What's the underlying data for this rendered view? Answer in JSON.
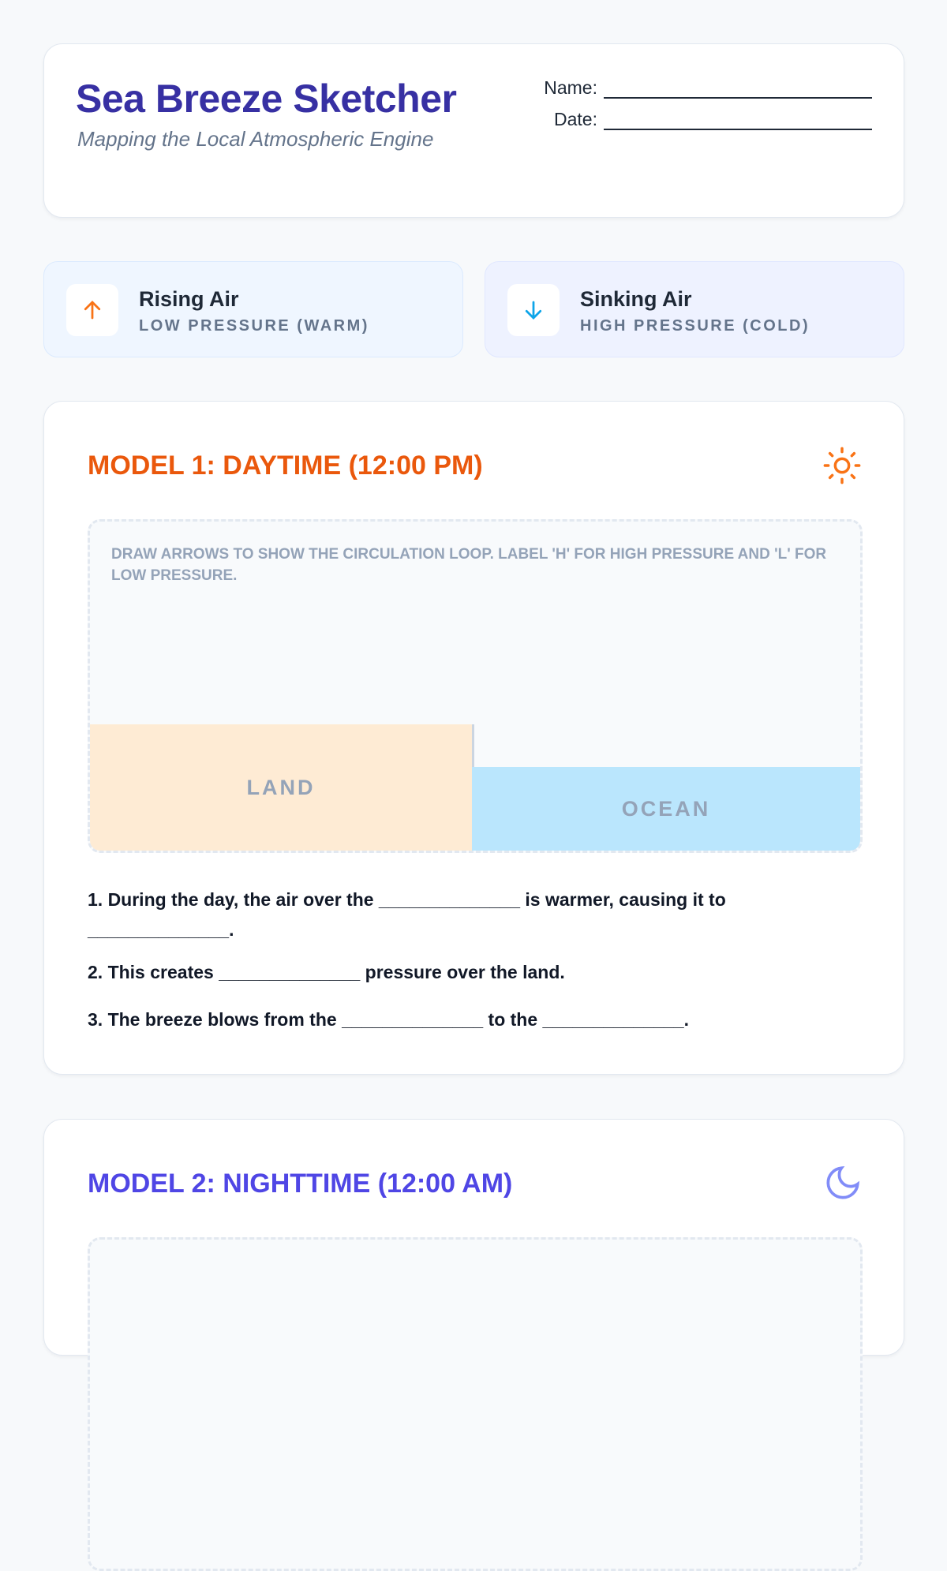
{
  "header": {
    "title": "Sea Breeze Sketcher",
    "subtitle": "Mapping the Local Atmospheric Engine",
    "name_label": "Name:",
    "date_label": "Date:"
  },
  "legend": [
    {
      "title": "Rising Air",
      "subtitle": "LOW PRESSURE (WARM)",
      "icon": "arrow-up-icon",
      "color": "#f97316"
    },
    {
      "title": "Sinking Air",
      "subtitle": "HIGH PRESSURE (COLD)",
      "icon": "arrow-down-icon",
      "color": "#0ea5e9"
    }
  ],
  "model1": {
    "title": "MODEL 1: DAYTIME (12:00 PM)",
    "color": "#ea580c",
    "icon": "sun-icon",
    "instructions": "Draw arrows to show the circulation loop. Label 'H' for High Pressure and 'L' for Low Pressure.",
    "land": "LAND",
    "ocean": "OCEAN",
    "questions": [
      "1. During the day, the air over the ______________ is warmer, causing it to ______________.",
      "2. This creates ______________ pressure over the land.",
      "3. The breeze blows from the ______________ to the ______________."
    ]
  },
  "model2": {
    "title": "MODEL 2: NIGHTTIME (12:00 AM)",
    "color": "#4f46e5",
    "icon": "moon-icon"
  }
}
